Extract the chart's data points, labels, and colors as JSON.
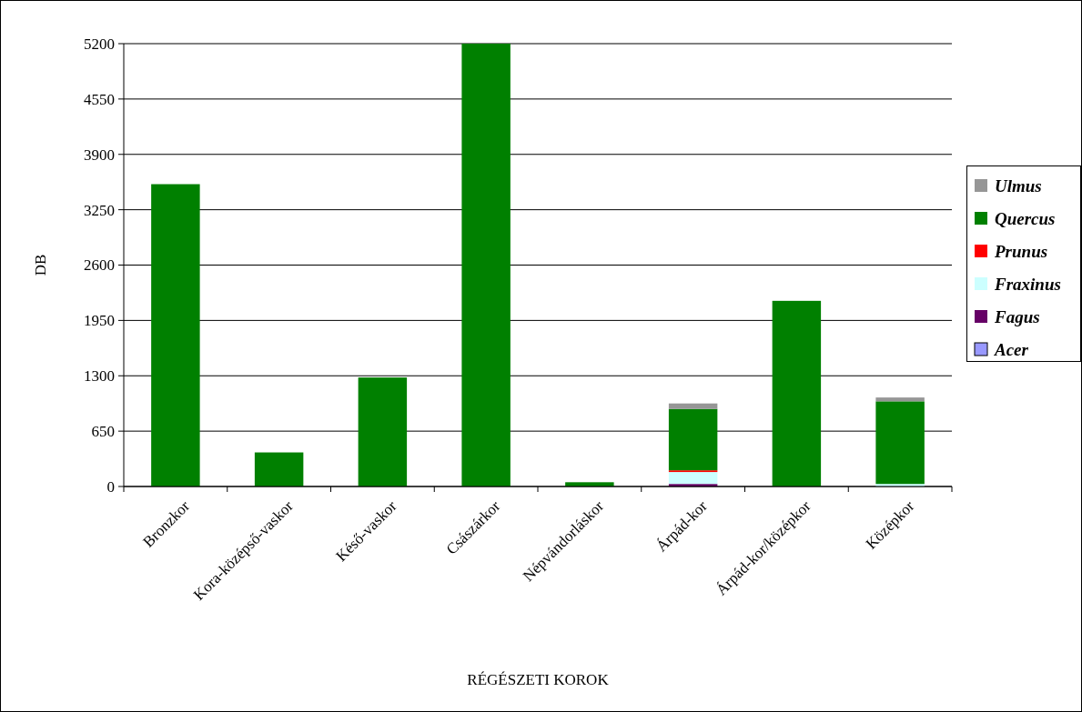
{
  "chart_data": {
    "type": "bar",
    "stacked": true,
    "xlabel": "RÉGÉSZETI KOROK",
    "ylabel": "DB",
    "categories": [
      "Bronzkor",
      "Kora-középső-vaskor",
      "Késő-vaskor",
      "Császárkor",
      "Népvándorláskor",
      "Árpád-kor",
      "Árpád-kor/középkor",
      "Középkor"
    ],
    "series": [
      {
        "name": "Acer",
        "color": "#9999ff",
        "values": [
          0,
          0,
          0,
          0,
          0,
          0,
          0,
          0
        ]
      },
      {
        "name": "Fagus",
        "color": "#660066",
        "values": [
          0,
          0,
          0,
          0,
          0,
          30,
          0,
          0
        ]
      },
      {
        "name": "Fraxinus",
        "color": "#ccffff",
        "values": [
          0,
          0,
          0,
          0,
          0,
          140,
          0,
          30
        ]
      },
      {
        "name": "Prunus",
        "color": "#ff0000",
        "values": [
          0,
          0,
          0,
          0,
          0,
          20,
          0,
          0
        ]
      },
      {
        "name": "Quercus",
        "color": "#008000",
        "values": [
          3550,
          400,
          1280,
          5200,
          50,
          720,
          2180,
          970
        ]
      },
      {
        "name": "Ulmus",
        "color": "#969696",
        "values": [
          0,
          0,
          0,
          0,
          0,
          65,
          0,
          45
        ]
      }
    ],
    "ylim": [
      0,
      5200
    ],
    "yticks": [
      0,
      650,
      1300,
      1950,
      2600,
      3250,
      3900,
      4550,
      5200
    ],
    "grid": "y",
    "legend": "right"
  }
}
